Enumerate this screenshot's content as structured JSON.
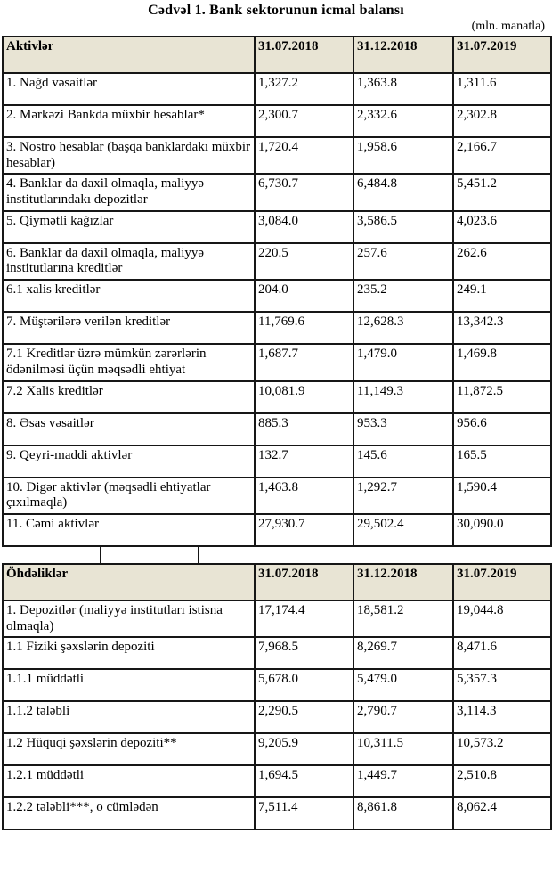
{
  "page": {
    "title": "Cədvəl 1. Bank sektorunun icmal balansı",
    "unit_note": "(mln. manatla)"
  },
  "colors": {
    "header_background": "#e8e4d4",
    "border": "#161616"
  },
  "tables": [
    {
      "id": "assets",
      "header_label": "Aktivlər",
      "columns": [
        "31.07.2018",
        "31.12.2018",
        "31.07.2019"
      ],
      "rows": [
        {
          "label": "1. Nağd vəsaitlər",
          "values": [
            "1,327.2",
            "1,363.8",
            "1,311.6"
          ]
        },
        {
          "label": "2. Mərkəzi Bankda müxbir hesablar*",
          "values": [
            "2,300.7",
            "2,332.6",
            "2,302.8"
          ]
        },
        {
          "label": "3. Nostro hesablar (başqa banklardakı müxbir hesablar)",
          "values": [
            "1,720.4",
            "1,958.6",
            "2,166.7"
          ]
        },
        {
          "label": "4. Banklar da daxil olmaqla, maliyyə institutlarındakı depozitlər",
          "values": [
            "6,730.7",
            "6,484.8",
            "5,451.2"
          ]
        },
        {
          "label": "5. Qiymətli kağızlar",
          "values": [
            "3,084.0",
            "3,586.5",
            "4,023.6"
          ]
        },
        {
          "label": "6. Banklar da daxil olmaqla, maliyyə institutlarına kreditlər",
          "values": [
            "220.5",
            "257.6",
            "262.6"
          ]
        },
        {
          "label": "6.1 xalis kreditlər",
          "values": [
            "204.0",
            "235.2",
            "249.1"
          ]
        },
        {
          "label": "7. Müştərilərə verilən kreditlər",
          "values": [
            "11,769.6",
            "12,628.3",
            "13,342.3"
          ]
        },
        {
          "label": "7.1 Kreditlər üzrə mümkün zərərlərin ödənilməsi üçün məqsədli ehtiyat",
          "values": [
            "1,687.7",
            "1,479.0",
            "1,469.8"
          ]
        },
        {
          "label": "7.2 Xalis kreditlər",
          "values": [
            "10,081.9",
            "11,149.3",
            "11,872.5"
          ]
        },
        {
          "label": "8. Əsas vəsaitlər",
          "values": [
            "885.3",
            "953.3",
            "956.6"
          ]
        },
        {
          "label": "9. Qeyri-maddi aktivlər",
          "values": [
            "132.7",
            "145.6",
            "165.5"
          ]
        },
        {
          "label": "10. Digər aktivlər (məqsədli ehtiyatlar çıxılmaqla)",
          "values": [
            "1,463.8",
            "1,292.7",
            "1,590.4"
          ]
        },
        {
          "label": "11. Cəmi aktivlər",
          "values": [
            "27,930.7",
            "29,502.4",
            "30,090.0"
          ]
        }
      ]
    },
    {
      "id": "liabilities",
      "header_label": "Öhdəliklər",
      "columns": [
        "31.07.2018",
        "31.12.2018",
        "31.07.2019"
      ],
      "rows": [
        {
          "label": "1. Depozitlər (maliyyə institutları istisna olmaqla)",
          "values": [
            "17,174.4",
            "18,581.2",
            "19,044.8"
          ]
        },
        {
          "label": "1.1 Fiziki şəxslərin depoziti",
          "values": [
            "7,968.5",
            "8,269.7",
            "8,471.6"
          ]
        },
        {
          "label": "1.1.1 müddətli",
          "values": [
            "5,678.0",
            "5,479.0",
            "5,357.3"
          ]
        },
        {
          "label": "1.1.2 tələbli",
          "values": [
            "2,290.5",
            "2,790.7",
            "3,114.3"
          ]
        },
        {
          "label": "1.2 Hüquqi şəxslərin depoziti**",
          "values": [
            "9,205.9",
            "10,311.5",
            "10,573.2"
          ]
        },
        {
          "label": "1.2.1 müddətli",
          "values": [
            "1,694.5",
            "1,449.7",
            "2,510.8"
          ]
        },
        {
          "label": "1.2.2 tələbli***, o cümlədən",
          "values": [
            "7,511.4",
            "8,861.8",
            "8,062.4"
          ]
        }
      ]
    }
  ]
}
